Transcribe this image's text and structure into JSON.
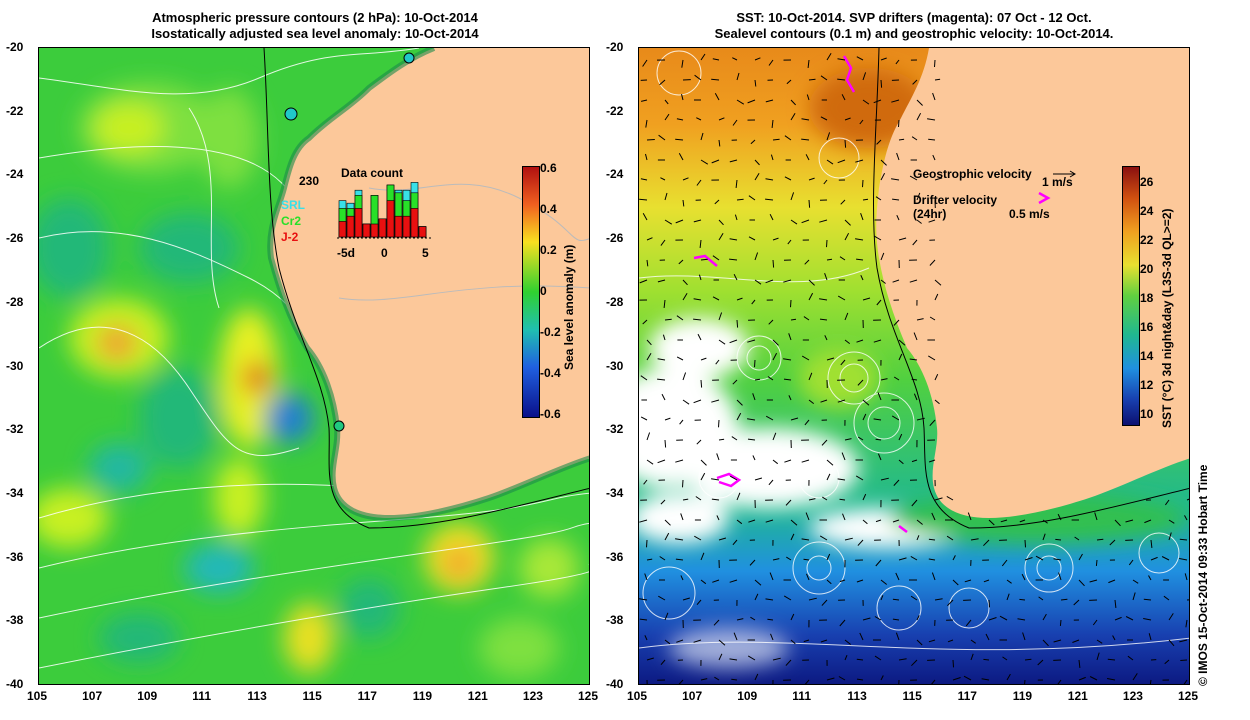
{
  "left_map": {
    "title_line1": "Atmospheric pressure contours (2 hPa): 10-Oct-2014",
    "title_line2": "Isostatically adjusted sea level anomaly: 10-Oct-2014",
    "y_ticks": [
      "-20",
      "-22",
      "-24",
      "-26",
      "-28",
      "-30",
      "-32",
      "-34",
      "-36",
      "-38",
      "-40"
    ],
    "x_ticks": [
      "105",
      "107",
      "109",
      "111",
      "113",
      "115",
      "117",
      "119",
      "121",
      "123",
      "125"
    ],
    "colorbar": {
      "label": "Sea level anomaly (m)",
      "ticks": [
        "0.6",
        "0.4",
        "0.2",
        "0",
        "-0.2",
        "-0.4",
        "-0.6"
      ]
    },
    "inset": {
      "title": "Data count",
      "count_label": "230",
      "legend": [
        {
          "label": "SRL",
          "color": "#38e0e8"
        },
        {
          "label": "Cr2",
          "color": "#28e028"
        },
        {
          "label": "J-2",
          "color": "#e81010"
        }
      ],
      "x_ticks": [
        "-5d",
        "0",
        "5"
      ],
      "bars": [
        {
          "day": -6,
          "j2": 0.3,
          "cr2": 0.55,
          "srl": 0.7
        },
        {
          "day": -5,
          "j2": 0.4,
          "cr2": 0.55,
          "srl": 0.65
        },
        {
          "day": -4,
          "j2": 0.55,
          "cr2": 0.8,
          "srl": 0.9
        },
        {
          "day": -3,
          "j2": 0.25,
          "cr2": 0.25,
          "srl": 0.25
        },
        {
          "day": -2,
          "j2": 0.25,
          "cr2": 0.8,
          "srl": 0.8
        },
        {
          "day": -1,
          "j2": 0.35,
          "cr2": 0.35,
          "srl": 0.35
        },
        {
          "day": 0,
          "j2": 0.7,
          "cr2": 1.0,
          "srl": 1.0
        },
        {
          "day": 1,
          "j2": 0.4,
          "cr2": 0.85,
          "srl": 0.9
        },
        {
          "day": 2,
          "j2": 0.4,
          "cr2": 0.7,
          "srl": 0.9
        },
        {
          "day": 3,
          "j2": 0.55,
          "cr2": 0.85,
          "srl": 1.05
        },
        {
          "day": 4,
          "j2": 0.2,
          "cr2": 0.2,
          "srl": 0.2
        }
      ]
    }
  },
  "right_map": {
    "title_line1": "SST: 10-Oct-2014. SVP drifters (magenta): 07 Oct - 12 Oct.",
    "title_line2": "Sealevel contours (0.1 m) and geostrophic velocity: 10-Oct-2014.",
    "y_ticks": [
      "-20",
      "-22",
      "-24",
      "-26",
      "-28",
      "-30",
      "-32",
      "-34",
      "-36",
      "-38",
      "-40"
    ],
    "x_ticks": [
      "105",
      "107",
      "109",
      "111",
      "113",
      "115",
      "117",
      "119",
      "121",
      "123",
      "125"
    ],
    "colorbar": {
      "label": "SST (°C) 3d night&day (L3S-3d QL>=2)",
      "ticks": [
        "26",
        "24",
        "22",
        "20",
        "18",
        "16",
        "14",
        "12",
        "10"
      ]
    },
    "legend": {
      "geostrophic_label": "Geostrophic velocity",
      "geostrophic_scale": "1 m/s",
      "drifter_label_line1": "Drifter velocity",
      "drifter_label_line2": "(24hr)",
      "drifter_scale": "0.5 m/s"
    }
  },
  "credit": "© IMOS 15-Oct-2014 09:33 Hobart Time",
  "colors": {
    "land": "#fcc89a",
    "ocean_green": "#2ec83c",
    "drifter": "#ff00ff"
  }
}
